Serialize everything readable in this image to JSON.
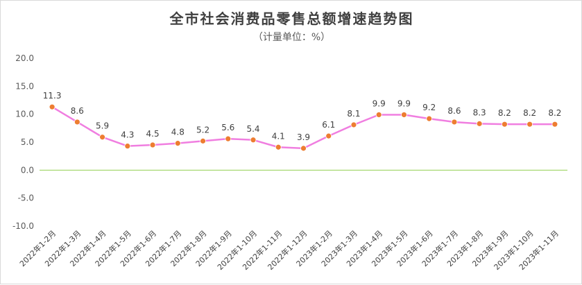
{
  "chart_data": {
    "type": "line",
    "title": "全市社会消费品零售总额增速趋势图",
    "subtitle": "（计量单位：%）",
    "categories": [
      "2022年1-2月",
      "2022年1-3月",
      "2022年1-4月",
      "2022年1-5月",
      "2022年1-6月",
      "2022年1-7月",
      "2022年1-8月",
      "2022年1-9月",
      "2022年1-10月",
      "2022年1-11月",
      "2022年1-12月",
      "2023年1-2月",
      "2023年1-3月",
      "2023年1-4月",
      "2023年1-5月",
      "2023年1-6月",
      "2023年1-7月",
      "2023年1-8月",
      "2023年1-9月",
      "2023年1-10月",
      "2023年1-11月"
    ],
    "series": [
      {
        "values": [
          11.3,
          8.6,
          5.9,
          4.3,
          4.5,
          4.8,
          5.2,
          5.6,
          5.4,
          4.1,
          3.9,
          6.1,
          8.1,
          9.9,
          9.9,
          9.2,
          8.6,
          8.3,
          8.2,
          8.2,
          8.2
        ]
      }
    ],
    "ylim": [
      -10,
      20
    ],
    "yticks": [
      "20.0",
      "15.0",
      "10.0",
      "5.0",
      "0.0",
      "-5.0",
      "-10.0"
    ],
    "data_labels": [
      "11.3",
      "8.6",
      "5.9",
      "4.3",
      "4.5",
      "4.8",
      "5.2",
      "5.6",
      "5.4",
      "4.1",
      "3.9",
      "6.1",
      "8.1",
      "9.9",
      "9.9",
      "9.2",
      "8.6",
      "8.3",
      "8.2",
      "8.2",
      "8.2"
    ],
    "grid": false,
    "line_color": "#f07ee0",
    "marker_color": "#ed7d31",
    "zero_line_color": "#92d050"
  }
}
